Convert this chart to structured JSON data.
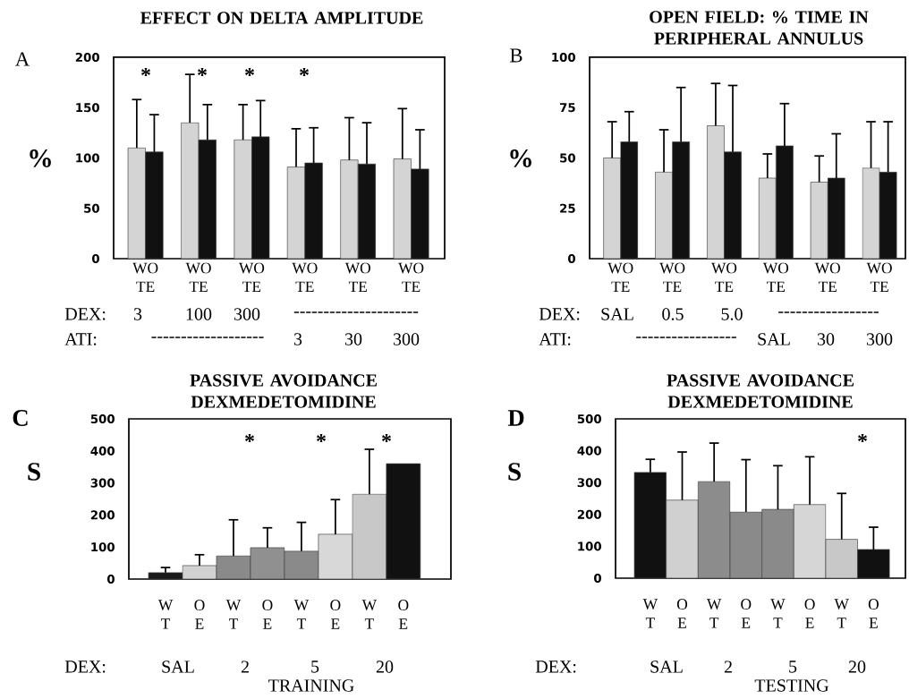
{
  "chart_data": [
    {
      "type": "bar",
      "title": "EFFECT ON DELTA AMPLITUDE",
      "ylabel": "%",
      "categories": [
        "WO TE",
        "WO TE",
        "WO TE",
        "WO TE",
        "WO TE",
        "WO TE"
      ],
      "series": [
        {
          "color": "#d4d4d4",
          "values": [
            110,
            135,
            118,
            91,
            98,
            99
          ],
          "errors": [
            [
              110,
              158
            ],
            [
              135,
              183
            ],
            [
              118,
              153
            ],
            [
              91,
              129
            ],
            [
              98,
              140
            ],
            [
              99,
              149
            ]
          ]
        },
        {
          "color": "#111111",
          "values": [
            106,
            118,
            121,
            95,
            94,
            89
          ],
          "errors": [
            [
              106,
              143
            ],
            [
              118,
              153
            ],
            [
              121,
              157
            ],
            [
              95,
              130
            ],
            [
              94,
              135
            ],
            [
              89,
              128
            ]
          ]
        }
      ],
      "ylim": [
        0,
        200
      ],
      "yticks": [
        0,
        50,
        100,
        150,
        200
      ],
      "annotations": [
        "A",
        "*",
        "*",
        "*",
        "*",
        "DEX:",
        "3",
        "100",
        "300",
        "---------------------",
        "ATI:",
        "-------------------",
        "3",
        "30",
        "300"
      ]
    },
    {
      "type": "bar",
      "title": "OPEN FIELD: % TIME IN PERIPHERAL ANNULUS",
      "ylabel": "%",
      "categories": [
        "WO TE",
        "WO TE",
        "WO TE",
        "WO TE",
        "WO TE",
        "WO TE"
      ],
      "series": [
        {
          "color": "#d4d4d4",
          "values": [
            50,
            43,
            66,
            40,
            38,
            45
          ],
          "errors": [
            [
              50,
              68
            ],
            [
              43,
              64
            ],
            [
              66,
              87
            ],
            [
              40,
              52
            ],
            [
              38,
              51
            ],
            [
              45,
              68
            ]
          ]
        },
        {
          "color": "#111111",
          "values": [
            58,
            58,
            53,
            56,
            40,
            43
          ],
          "errors": [
            [
              58,
              73
            ],
            [
              58,
              85
            ],
            [
              53,
              86
            ],
            [
              56,
              77
            ],
            [
              40,
              62
            ],
            [
              43,
              68
            ]
          ]
        }
      ],
      "ylim": [
        0,
        100
      ],
      "yticks": [
        0,
        25,
        50,
        75,
        100
      ],
      "annotations": [
        "B",
        "DEX:",
        "SAL",
        "0.5",
        "5.0",
        "-----------------",
        "ATI:",
        "-----------------",
        "SAL",
        "30",
        "300"
      ]
    },
    {
      "type": "bar",
      "title": "PASSIVE AVOIDANCE DEXMEDETOMIDINE",
      "ylabel": "S",
      "xlabel": "TRAINING",
      "categories": [
        "W T",
        "O E",
        "W T",
        "O E",
        "W T",
        "O E",
        "W T",
        "O E"
      ],
      "values": [
        20,
        42,
        72,
        98,
        87,
        140,
        265,
        360
      ],
      "errors": [
        [
          20,
          36
        ],
        [
          42,
          76
        ],
        [
          72,
          185
        ],
        [
          98,
          160
        ],
        [
          87,
          177
        ],
        [
          140,
          248
        ],
        [
          265,
          405
        ],
        null
      ],
      "colors": [
        "#1a1a1a",
        "#d2d2d2",
        "#8a8a8a",
        "#909090",
        "#8a8a8a",
        "#d8d8d8",
        "#c8c8c8",
        "#111111"
      ],
      "ylim": [
        0,
        500
      ],
      "yticks": [
        0,
        100,
        200,
        300,
        400,
        500
      ],
      "annotations": [
        "C",
        "*",
        "*",
        "*",
        "DEX:",
        "SAL",
        "2",
        "5",
        "20"
      ]
    },
    {
      "type": "bar",
      "title": "PASSIVE AVOIDANCE DEXMEDETOMIDINE",
      "ylabel": "S",
      "xlabel": "TESTING",
      "categories": [
        "W T",
        "O E",
        "W T",
        "O E",
        "W T",
        "O E",
        "W T",
        "O E"
      ],
      "values": [
        332,
        245,
        303,
        208,
        216,
        231,
        122,
        90
      ],
      "errors": [
        [
          332,
          373
        ],
        [
          245,
          396
        ],
        [
          303,
          424
        ],
        [
          208,
          372
        ],
        [
          216,
          353
        ],
        [
          231,
          381
        ],
        [
          122,
          266
        ],
        [
          90,
          160
        ]
      ],
      "colors": [
        "#111111",
        "#d0d0d0",
        "#8c8c8c",
        "#8a8a8a",
        "#8a8a8a",
        "#d6d6d6",
        "#c8c8c8",
        "#111111"
      ],
      "ylim": [
        0,
        500
      ],
      "yticks": [
        0,
        100,
        200,
        300,
        400,
        500
      ],
      "annotations": [
        "D",
        "*",
        "DEX:",
        "SAL",
        "2",
        "5",
        "20"
      ]
    }
  ]
}
